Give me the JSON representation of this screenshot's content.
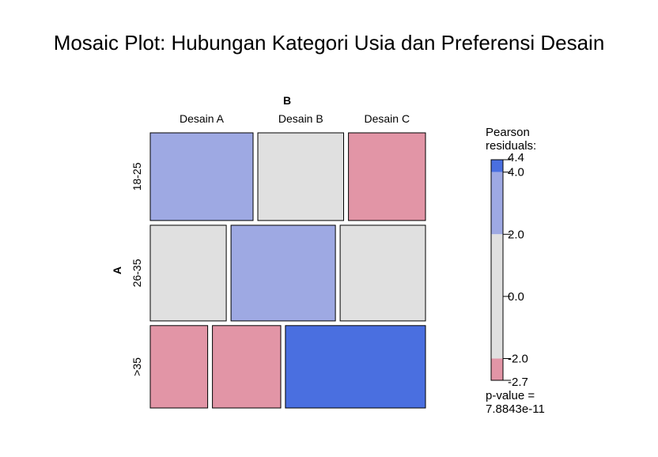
{
  "chart_data": {
    "type": "mosaic",
    "title": "Mosaic Plot: Hubungan Kategori Usia dan Preferensi Desain",
    "column_variable": "B",
    "row_variable": "A",
    "column_levels": [
      "Desain A",
      "Desain B",
      "Desain C"
    ],
    "row_levels": [
      "18-25",
      "26-35",
      ">35"
    ],
    "row_proportions": [
      0.33,
      0.36,
      0.31
    ],
    "cell_proportions_within_row": [
      [
        0.387,
        0.323,
        0.29
      ],
      [
        0.286,
        0.393,
        0.321
      ],
      [
        0.216,
        0.257,
        0.527
      ]
    ],
    "residual_classes": [
      [
        "pos_mid",
        "neutral",
        "neg"
      ],
      [
        "neutral",
        "pos_mid",
        "neutral"
      ],
      [
        "neg",
        "neg",
        "pos_high"
      ]
    ],
    "colors": {
      "pos_high": "#4a6fe0",
      "pos_mid": "#9ea9e3",
      "neutral": "#e0e0e0",
      "neg": "#e295a6"
    },
    "legend": {
      "title_line1": "Pearson",
      "title_line2": "residuals:",
      "max": 4.4,
      "min": -2.7,
      "tick_values": [
        4.4,
        4.0,
        2.0,
        0.0,
        -2.0,
        -2.7
      ],
      "tick_labels": [
        "4.4",
        "4.0",
        "2.0",
        "0.0",
        "-2.0",
        "-2.7"
      ],
      "bands": [
        {
          "from": 4.0,
          "to": 4.4,
          "class": "pos_high"
        },
        {
          "from": 2.0,
          "to": 4.0,
          "class": "pos_mid"
        },
        {
          "from": -2.0,
          "to": 2.0,
          "class": "neutral"
        },
        {
          "from": -2.7,
          "to": -2.0,
          "class": "neg"
        }
      ],
      "pvalue_label": "p-value =",
      "pvalue": "7.8843e-11"
    }
  }
}
